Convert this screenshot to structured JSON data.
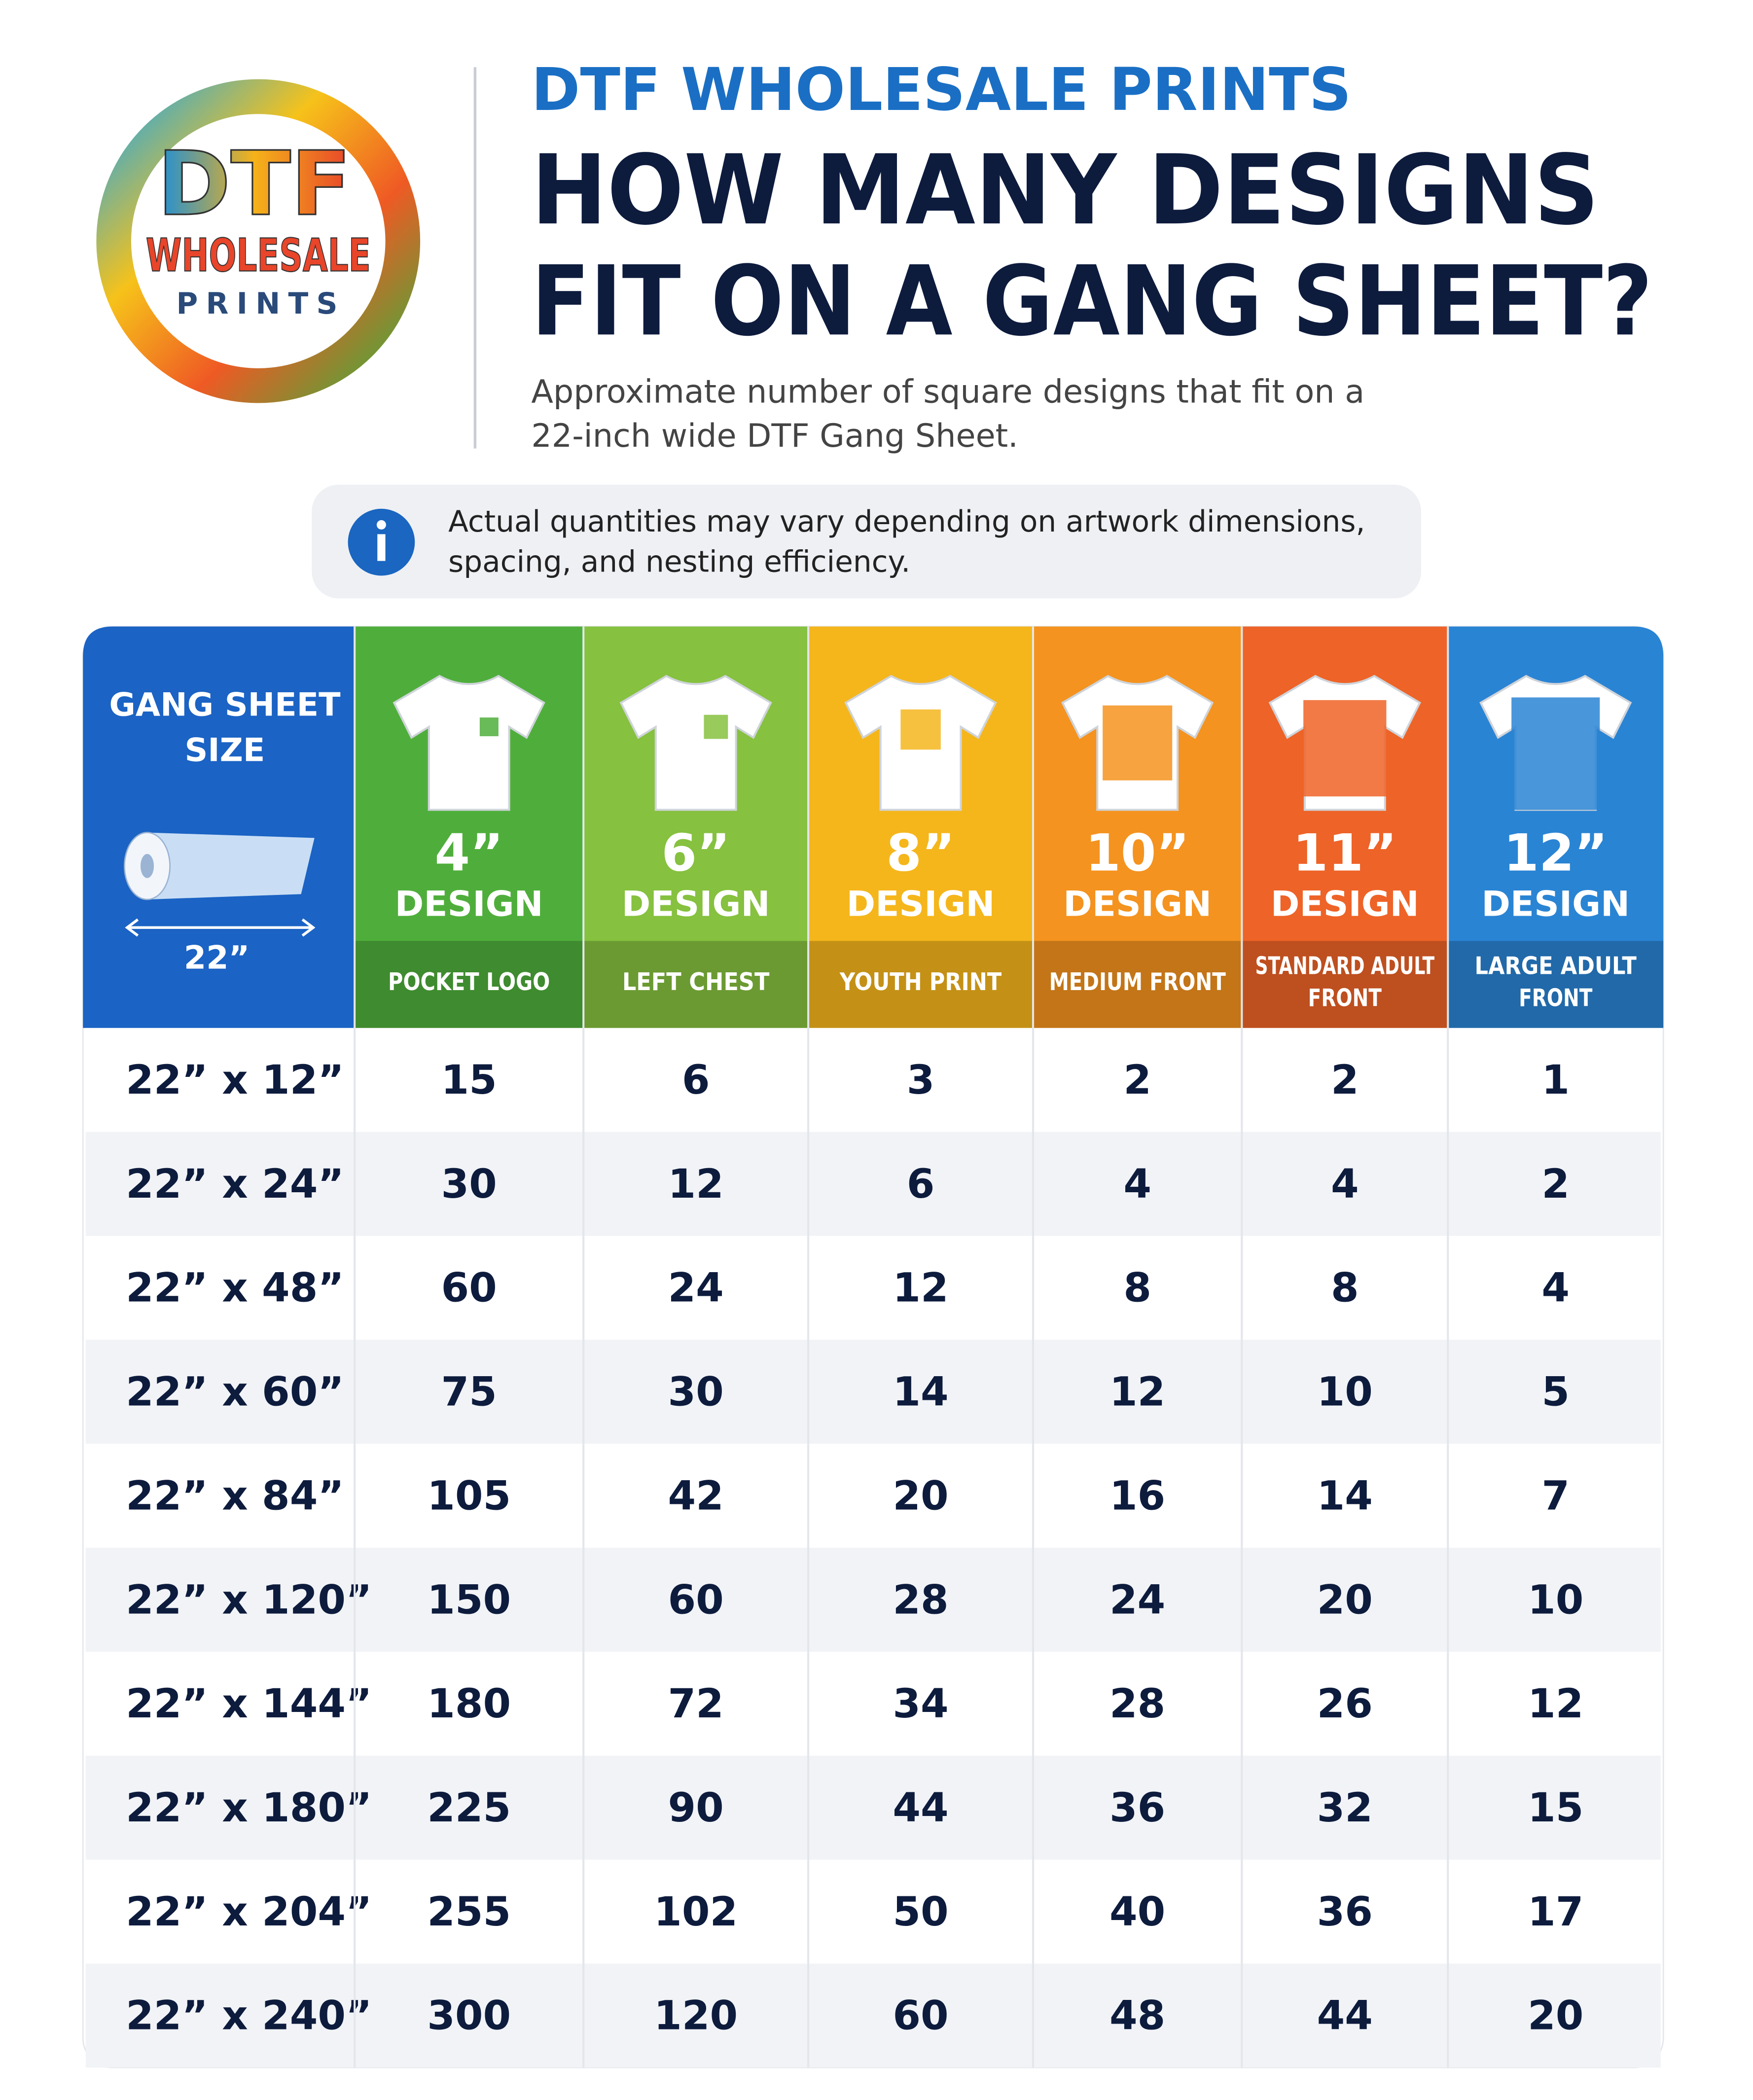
{
  "logo": {
    "top": "DTF",
    "middle": "WHOLESALE",
    "bottom": "PRINTS"
  },
  "header": {
    "brand": "DTF WHOLESALE PRINTS",
    "title_lines": [
      "HOW MANY DESIGNS",
      "FIT ON A GANG SHEET?"
    ],
    "subtitle_lines": [
      "Approximate number of square designs that fit on a",
      "22-inch wide DTF Gang Sheet."
    ]
  },
  "notice": {
    "lines": [
      "Actual quantities may vary depending on artwork dimensions,",
      "spacing, and nesting efficiency."
    ]
  },
  "table": {
    "corner": {
      "lines": [
        "GANG SHEET",
        "SIZE"
      ],
      "width": "22”"
    },
    "columns": [
      {
        "size": "4”",
        "word": "DESIGN",
        "label": [
          "POCKET LOGO"
        ],
        "color": "#4fae3b"
      },
      {
        "size": "6”",
        "word": "DESIGN",
        "label": [
          "LEFT CHEST"
        ],
        "color": "#86c13f"
      },
      {
        "size": "8”",
        "word": "DESIGN",
        "label": [
          "YOUTH PRINT"
        ],
        "color": "#f5b61c"
      },
      {
        "size": "10”",
        "word": "DESIGN",
        "label": [
          "MEDIUM FRONT"
        ],
        "color": "#f4931f"
      },
      {
        "size": "11”",
        "word": "DESIGN",
        "label": [
          "STANDARD ADULT",
          "FRONT"
        ],
        "color": "#ee6327"
      },
      {
        "size": "12”",
        "word": "DESIGN",
        "label": [
          "LARGE ADULT",
          "FRONT"
        ],
        "color": "#2a84d4"
      }
    ],
    "rows": [
      {
        "size": "22” x 12”",
        "values": [
          15,
          6,
          3,
          2,
          2,
          1
        ]
      },
      {
        "size": "22” x 24”",
        "values": [
          30,
          12,
          6,
          4,
          4,
          2
        ]
      },
      {
        "size": "22” x 48”",
        "values": [
          60,
          24,
          12,
          8,
          8,
          4
        ]
      },
      {
        "size": "22” x 60”",
        "values": [
          75,
          30,
          14,
          12,
          10,
          5
        ]
      },
      {
        "size": "22” x 84”",
        "values": [
          105,
          42,
          20,
          16,
          14,
          7
        ]
      },
      {
        "size": "22” x 120”",
        "values": [
          150,
          60,
          28,
          24,
          20,
          10
        ]
      },
      {
        "size": "22” x 144”",
        "values": [
          180,
          72,
          34,
          28,
          26,
          12
        ]
      },
      {
        "size": "22” x 180”",
        "values": [
          225,
          90,
          44,
          36,
          32,
          15
        ]
      },
      {
        "size": "22” x 204”",
        "values": [
          255,
          102,
          50,
          40,
          36,
          17
        ]
      },
      {
        "size": "22” x 240”",
        "values": [
          300,
          120,
          60,
          48,
          44,
          20
        ]
      }
    ]
  }
}
